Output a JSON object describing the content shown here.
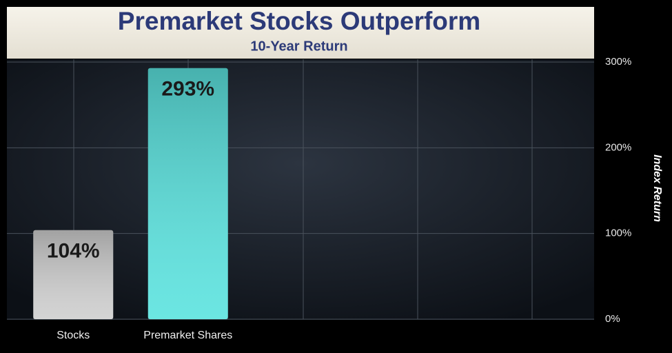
{
  "chart_data": {
    "type": "bar",
    "title": "Premarket Stocks Outperform",
    "subtitle": "10-Year Return",
    "y_label": "Index Return",
    "categories": [
      "Stocks",
      "Premarket Shares"
    ],
    "values": [
      104,
      293
    ],
    "value_labels": [
      "104%",
      "293%"
    ],
    "colors": [
      "#cfcfcf",
      "#5be3df"
    ],
    "ylim": [
      0,
      300
    ],
    "yticks": [
      {
        "value": 0,
        "label": "0%"
      },
      {
        "value": 100,
        "label": "100%"
      },
      {
        "value": 200,
        "label": "200%"
      },
      {
        "value": 300,
        "label": "300%"
      }
    ],
    "grid": true
  }
}
